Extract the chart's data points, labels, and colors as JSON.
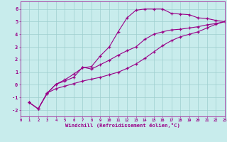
{
  "xlabel": "Windchill (Refroidissement éolien,°C)",
  "background_color": "#c8ecec",
  "grid_color": "#9ecece",
  "line_color": "#990088",
  "xlim": [
    0,
    23
  ],
  "ylim": [
    -2.5,
    6.6
  ],
  "yticks": [
    -2,
    -1,
    0,
    1,
    2,
    3,
    4,
    5,
    6
  ],
  "xticks": [
    0,
    1,
    2,
    3,
    4,
    5,
    6,
    7,
    8,
    9,
    10,
    11,
    12,
    13,
    14,
    15,
    16,
    17,
    18,
    19,
    20,
    21,
    22,
    23
  ],
  "curve1_x": [
    1,
    2,
    3,
    4,
    5,
    6,
    7,
    8,
    9,
    10,
    11,
    12,
    13,
    14,
    15,
    16,
    17,
    18,
    19,
    20,
    21,
    22,
    23
  ],
  "curve1_y": [
    -1.4,
    -1.9,
    -0.7,
    0.05,
    0.4,
    0.85,
    1.35,
    1.45,
    2.3,
    3.0,
    4.2,
    5.3,
    5.9,
    6.0,
    6.0,
    6.0,
    5.65,
    5.6,
    5.55,
    5.3,
    5.25,
    5.1,
    5.0
  ],
  "curve2_x": [
    1,
    2,
    3,
    4,
    5,
    6,
    7,
    8,
    9,
    10,
    11,
    12,
    13,
    14,
    15,
    16,
    17,
    18,
    19,
    20,
    21,
    22,
    23
  ],
  "curve2_y": [
    -1.4,
    -1.9,
    -0.65,
    0.05,
    0.3,
    0.6,
    1.4,
    1.25,
    1.6,
    1.95,
    2.35,
    2.7,
    3.0,
    3.6,
    4.0,
    4.2,
    4.35,
    4.4,
    4.5,
    4.6,
    4.75,
    4.85,
    5.0
  ],
  "curve3_x": [
    1,
    2,
    3,
    4,
    5,
    6,
    7,
    8,
    9,
    10,
    11,
    12,
    13,
    14,
    15,
    16,
    17,
    18,
    19,
    20,
    21,
    22,
    23
  ],
  "curve3_y": [
    -1.4,
    -1.9,
    -0.65,
    -0.3,
    -0.1,
    0.1,
    0.3,
    0.45,
    0.6,
    0.8,
    1.0,
    1.3,
    1.65,
    2.1,
    2.6,
    3.1,
    3.5,
    3.8,
    4.0,
    4.2,
    4.5,
    4.8,
    5.0
  ]
}
